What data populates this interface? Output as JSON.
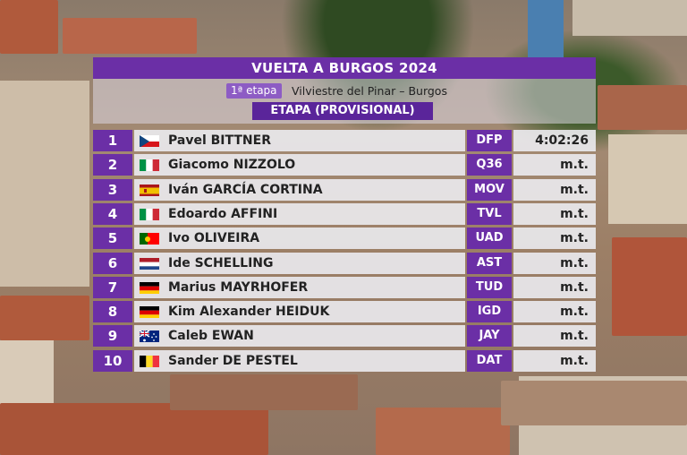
{
  "header": {
    "title": "VUELTA A BURGOS 2024",
    "stage_label": "1ª etapa",
    "route": "Vilviestre del Pinar – Burgos",
    "classification": "ETAPA (PROVISIONAL)"
  },
  "results": [
    {
      "pos": "1",
      "flag": "CZ",
      "name": "Pavel BITTNER",
      "team": "DFP",
      "time": "4:02:26"
    },
    {
      "pos": "2",
      "flag": "IT",
      "name": "Giacomo NIZZOLO",
      "team": "Q36",
      "time": "m.t."
    },
    {
      "pos": "3",
      "flag": "ES",
      "name": "Iván GARCÍA CORTINA",
      "team": "MOV",
      "time": "m.t."
    },
    {
      "pos": "4",
      "flag": "IT",
      "name": "Edoardo AFFINI",
      "team": "TVL",
      "time": "m.t."
    },
    {
      "pos": "5",
      "flag": "PT",
      "name": "Ivo OLIVEIRA",
      "team": "UAD",
      "time": "m.t."
    },
    {
      "pos": "6",
      "flag": "NL",
      "name": "Ide SCHELLING",
      "team": "AST",
      "time": "m.t."
    },
    {
      "pos": "7",
      "flag": "DE",
      "name": "Marius MAYRHOFER",
      "team": "TUD",
      "time": "m.t."
    },
    {
      "pos": "8",
      "flag": "DE",
      "name": "Kim Alexander HEIDUK",
      "team": "IGD",
      "time": "m.t."
    },
    {
      "pos": "9",
      "flag": "AU",
      "name": "Caleb EWAN",
      "team": "JAY",
      "time": "m.t."
    },
    {
      "pos": "10",
      "flag": "BE",
      "name": "Sander DE PESTEL",
      "team": "DAT",
      "time": "m.t."
    }
  ],
  "colors": {
    "accent": "#6b2fa6",
    "badge": "#8d5cc4"
  }
}
